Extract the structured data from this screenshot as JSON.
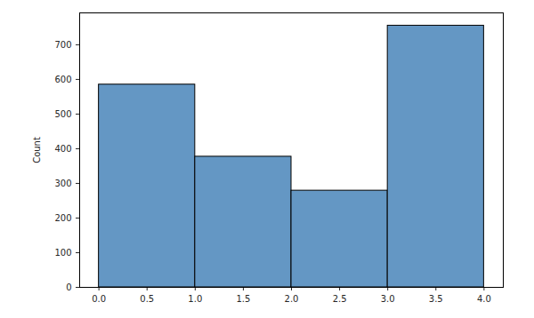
{
  "chart_data": {
    "type": "histogram",
    "y_label": "Count",
    "bins": [
      0,
      1,
      2,
      3,
      4
    ],
    "values": [
      585,
      377,
      279,
      755
    ],
    "color": "#6497c4",
    "xlim": [
      -0.2,
      4.2
    ],
    "xticks": [
      {
        "value": 0,
        "label": "0.0"
      },
      0.5,
      {
        "value": 1,
        "label": "1.0"
      },
      1.5,
      {
        "value": 2,
        "label": "2.0"
      },
      2.5,
      {
        "value": 3,
        "label": "3.0"
      },
      3.5,
      {
        "value": 4,
        "label": "4.0"
      }
    ],
    "ylim": [
      0,
      792
    ],
    "yticks": [
      0,
      100,
      200,
      300,
      400,
      500,
      600,
      700
    ],
    "grid": false
  }
}
